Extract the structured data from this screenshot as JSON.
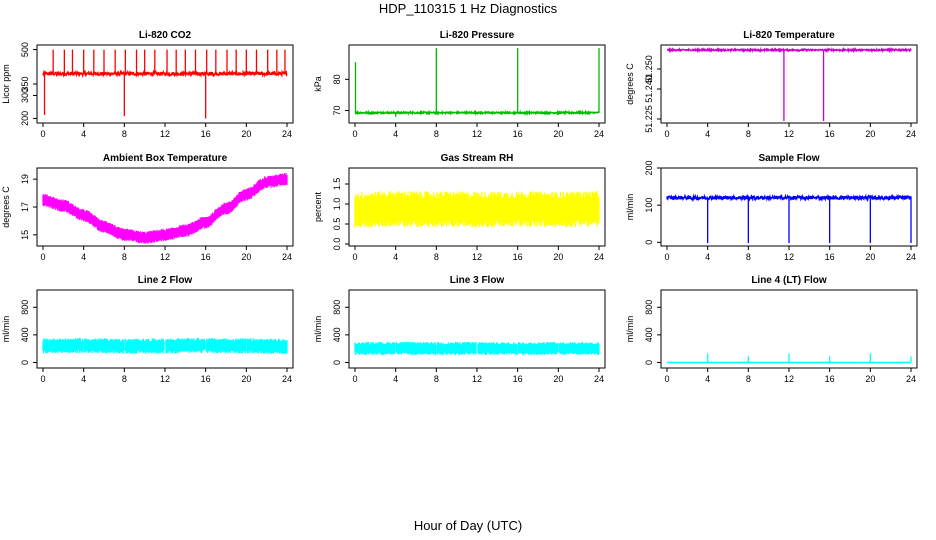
{
  "page": {
    "title": "HDP_110315  1 Hz Diagnostics",
    "xlabel": "Hour of Day (UTC)"
  },
  "chart_data": [
    {
      "type": "line",
      "title": "Li-820 CO2",
      "ylabel": "Licor ppm",
      "color": "#ff0000",
      "xlim": [
        0,
        24
      ],
      "ylim": [
        180,
        520
      ],
      "xticks": [
        0,
        4,
        8,
        12,
        16,
        20,
        24
      ],
      "yticks": [
        200,
        300,
        350,
        500
      ],
      "ytick_labels": [
        "200",
        "300",
        "350",
        "500"
      ],
      "pattern": "baseline-spikes",
      "series": [
        {
          "baseline": 395,
          "noise": 8,
          "spikes_up": [
            [
              1.0,
              500
            ],
            [
              2.1,
              500
            ],
            [
              2.9,
              500
            ],
            [
              4.0,
              500
            ],
            [
              5.0,
              500
            ],
            [
              6.0,
              500
            ],
            [
              7.1,
              500
            ],
            [
              8.1,
              500
            ],
            [
              9.2,
              500
            ],
            [
              10.0,
              500
            ],
            [
              11.0,
              500
            ],
            [
              12.2,
              500
            ],
            [
              13.1,
              500
            ],
            [
              14.0,
              500
            ],
            [
              15.0,
              500
            ],
            [
              16.1,
              500
            ],
            [
              17.0,
              500
            ],
            [
              18.1,
              500
            ],
            [
              19.0,
              500
            ],
            [
              20.0,
              500
            ],
            [
              21.0,
              500
            ],
            [
              22.1,
              500
            ],
            [
              23.0,
              500
            ],
            [
              23.8,
              500
            ]
          ],
          "spikes_down": [
            [
              0.15,
              215
            ],
            [
              8.0,
              210
            ],
            [
              16.0,
              200
            ]
          ]
        }
      ]
    },
    {
      "type": "line",
      "title": "Li-820 Pressure",
      "ylabel": "kPa",
      "color": "#00bb00",
      "xlim": [
        0,
        24
      ],
      "ylim": [
        66,
        91
      ],
      "xticks": [
        0,
        4,
        8,
        12,
        16,
        20,
        24
      ],
      "yticks": [
        70,
        80
      ],
      "ytick_labels": [
        "70",
        "80"
      ],
      "pattern": "baseline-spikes",
      "series": [
        {
          "baseline": 69.3,
          "noise": 0.25,
          "spikes_up": [
            [
              0.05,
              85.5
            ],
            [
              8.0,
              90
            ],
            [
              16.0,
              90
            ],
            [
              24.0,
              90
            ]
          ],
          "spikes_down": [
            [
              4.0,
              68
            ]
          ]
        }
      ]
    },
    {
      "type": "line",
      "title": "Li-820 Temperature",
      "ylabel": "degrees C",
      "color": "#cc00cc",
      "xlim": [
        0,
        24
      ],
      "ylim": [
        51.223,
        51.262
      ],
      "xticks": [
        0,
        4,
        8,
        12,
        16,
        20,
        24
      ],
      "yticks": [
        51.225,
        51.24,
        51.25
      ],
      "ytick_labels": [
        "51.225",
        "51.240",
        "51.250"
      ],
      "pattern": "baseline-spikes",
      "series": [
        {
          "baseline": 51.2595,
          "noise": 0.0004,
          "spikes_up": [],
          "spikes_down": [
            [
              11.5,
              51.224
            ],
            [
              15.4,
              51.224
            ]
          ]
        }
      ]
    },
    {
      "type": "line",
      "title": "Ambient Box Temperature",
      "ylabel": "degrees C",
      "color": "#ff00ff",
      "xlim": [
        0,
        24
      ],
      "ylim": [
        14.2,
        19.8
      ],
      "xticks": [
        0,
        4,
        8,
        12,
        16,
        20,
        24
      ],
      "yticks": [
        15,
        17,
        19
      ],
      "ytick_labels": [
        "15",
        "17",
        "19"
      ],
      "pattern": "band",
      "series": [
        {
          "x": [
            0,
            2,
            4,
            6,
            8,
            10,
            12,
            14,
            16,
            18,
            20,
            22,
            24
          ],
          "y": [
            17.5,
            17.1,
            16.4,
            15.6,
            15.0,
            14.8,
            15.0,
            15.3,
            15.9,
            16.9,
            17.9,
            18.8,
            19.0
          ],
          "spread": 0.45
        }
      ]
    },
    {
      "type": "line",
      "title": "Gas Stream RH",
      "ylabel": "percent",
      "color": "#ffff00",
      "xlim": [
        0,
        24
      ],
      "ylim": [
        -0.05,
        1.9
      ],
      "xticks": [
        0,
        4,
        8,
        12,
        16,
        20,
        24
      ],
      "yticks": [
        0.0,
        0.5,
        1.0,
        1.5
      ],
      "ytick_labels": [
        "0.0",
        "0.5",
        "1.0",
        "1.5"
      ],
      "pattern": "band",
      "series": [
        {
          "x": [
            0,
            4,
            8,
            12,
            16,
            20,
            24
          ],
          "y": [
            0.85,
            0.88,
            0.87,
            0.86,
            0.87,
            0.86,
            0.88
          ],
          "spread": 0.45
        }
      ]
    },
    {
      "type": "line",
      "title": "Sample Flow",
      "ylabel": "ml/min",
      "color": "#0000ff",
      "xlim": [
        0,
        24
      ],
      "ylim": [
        -10,
        200
      ],
      "xticks": [
        0,
        4,
        8,
        12,
        16,
        20,
        24
      ],
      "yticks": [
        0,
        100,
        200
      ],
      "ytick_labels": [
        "0",
        "100",
        "200"
      ],
      "pattern": "baseline-spikes",
      "series": [
        {
          "baseline": 120,
          "noise": 5,
          "spikes_up": [],
          "spikes_down": [
            [
              4.0,
              -2
            ],
            [
              8.0,
              -2
            ],
            [
              12.0,
              -2
            ],
            [
              16.0,
              -2
            ],
            [
              20.0,
              -2
            ],
            [
              24.0,
              -2
            ]
          ]
        }
      ]
    },
    {
      "type": "area",
      "title": "Line 2 Flow",
      "ylabel": "ml/min",
      "color": "#00ffff",
      "xlim": [
        0,
        24
      ],
      "ylim": [
        -80,
        1050
      ],
      "xticks": [
        0,
        4,
        8,
        12,
        16,
        20,
        24
      ],
      "yticks": [
        0,
        400,
        800
      ],
      "ytick_labels": [
        "0",
        "400",
        "800"
      ],
      "pattern": "band",
      "series": [
        {
          "x": [
            0,
            4,
            8,
            12,
            16,
            20,
            24
          ],
          "y": [
            240,
            245,
            235,
            240,
            245,
            240,
            235
          ],
          "spread": 110,
          "gaps": [
            4,
            8,
            12,
            16,
            20
          ]
        }
      ]
    },
    {
      "type": "area",
      "title": "Line 3 Flow",
      "ylabel": "ml/min",
      "color": "#00ffff",
      "xlim": [
        0,
        24
      ],
      "ylim": [
        -80,
        1050
      ],
      "xticks": [
        0,
        4,
        8,
        12,
        16,
        20,
        24
      ],
      "yticks": [
        0,
        400,
        800
      ],
      "ytick_labels": [
        "0",
        "400",
        "800"
      ],
      "pattern": "band",
      "series": [
        {
          "x": [
            0,
            4,
            8,
            12,
            16,
            20,
            24
          ],
          "y": [
            200,
            205,
            200,
            205,
            200,
            205,
            200
          ],
          "spread": 95,
          "gaps": [
            4,
            8,
            12,
            16,
            20
          ]
        }
      ]
    },
    {
      "type": "line",
      "title": "Line 4 (LT) Flow",
      "ylabel": "ml/min",
      "color": "#00ffff",
      "xlim": [
        0,
        24
      ],
      "ylim": [
        -80,
        1050
      ],
      "xticks": [
        0,
        4,
        8,
        12,
        16,
        20,
        24
      ],
      "yticks": [
        0,
        400,
        800
      ],
      "ytick_labels": [
        "0",
        "400",
        "800"
      ],
      "pattern": "baseline-spikes",
      "series": [
        {
          "baseline": 0,
          "noise": 1,
          "spikes_up": [
            [
              4.0,
              130
            ],
            [
              8.0,
              90
            ],
            [
              12.0,
              130
            ],
            [
              16.0,
              90
            ],
            [
              20.0,
              130
            ],
            [
              24.0,
              90
            ]
          ],
          "spikes_down": []
        }
      ]
    }
  ]
}
